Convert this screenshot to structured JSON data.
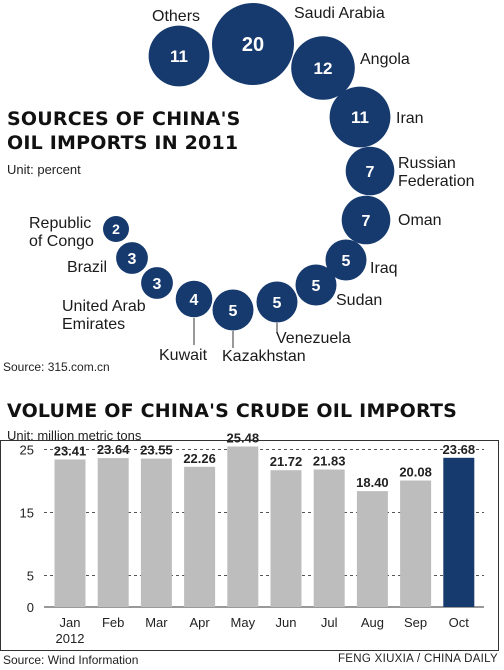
{
  "colors": {
    "bubble": "#163a6e",
    "bar": "#bdbdbd",
    "bar_highlight": "#163a6e",
    "text": "#1a1a1a"
  },
  "sources_title_line1": "SOURCES OF CHINA'S",
  "sources_title_line2": "OIL IMPORTS IN 2011",
  "sources_unit": "Unit: percent",
  "sources_source": "Source: 315.com.cn",
  "volume_title": "VOLUME OF CHINA'S CRUDE OIL IMPORTS",
  "volume_unit": "Unit: million metric tons",
  "volume_source": "Source: Wind Information",
  "credit": "FENG XIUXIA / CHINA DAILY",
  "chart_data": [
    {
      "type": "bubble",
      "title": "SOURCES OF CHINA'S OIL IMPORTS IN 2011",
      "unit": "percent",
      "categories": [
        "Saudi Arabia",
        "Angola",
        "Iran",
        "Russian Federation",
        "Oman",
        "Iraq",
        "Sudan",
        "Venezuela",
        "Kazakhstan",
        "Kuwait",
        "United Arab Emirates",
        "Brazil",
        "Republic of Congo",
        "Others"
      ],
      "values": [
        20,
        12,
        11,
        7,
        7,
        5,
        5,
        5,
        5,
        4,
        3,
        3,
        2,
        11
      ]
    },
    {
      "type": "bar",
      "title": "VOLUME OF CHINA'S CRUDE OIL IMPORTS",
      "unit": "million metric tons",
      "categories": [
        "Jan 2012",
        "Feb",
        "Mar",
        "Apr",
        "May",
        "Jun",
        "Jul",
        "Aug",
        "Sep",
        "Oct"
      ],
      "values": [
        23.41,
        23.64,
        23.55,
        22.26,
        25.48,
        21.72,
        21.83,
        18.4,
        20.08,
        23.68
      ],
      "value_labels": [
        "23.41",
        "23.64",
        "23.55",
        "22.26",
        "25.48",
        "21.72",
        "21.83",
        "18.40",
        "20.08",
        "23.68"
      ],
      "yticks": [
        0,
        5,
        15,
        25
      ],
      "ylim": [
        0,
        27
      ],
      "highlight": "Oct",
      "grid": true
    }
  ]
}
